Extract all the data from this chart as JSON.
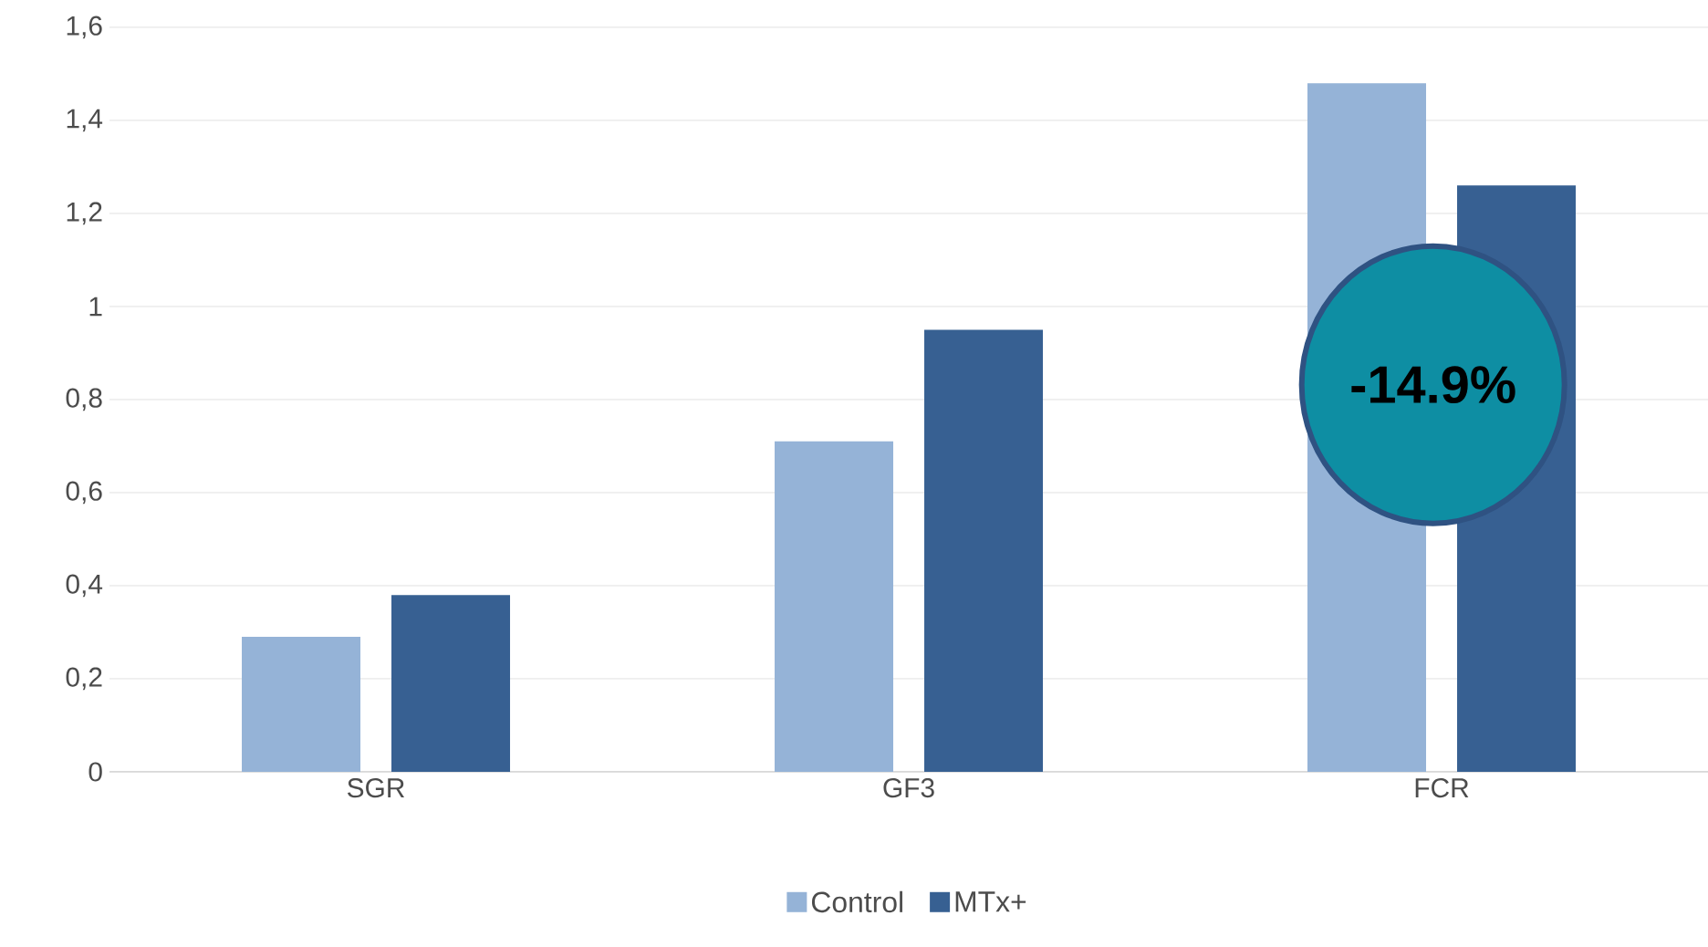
{
  "chart_data": {
    "type": "bar",
    "categories": [
      "SGR",
      "GF3",
      "FCR"
    ],
    "series": [
      {
        "name": "Control",
        "color": "#95b3d7",
        "values": [
          0.29,
          0.71,
          1.48
        ]
      },
      {
        "name": "MTx+",
        "color": "#376092",
        "values": [
          0.38,
          0.95,
          1.26
        ]
      }
    ],
    "ylim": [
      0,
      1.6
    ],
    "yticks": [
      0,
      {
        "value": 0.2,
        "label": "0,2"
      },
      {
        "value": 0.4,
        "label": "0,4"
      },
      {
        "value": 0.6,
        "label": "0,6"
      },
      {
        "value": 0.8,
        "label": "0,8"
      },
      1,
      {
        "value": 1.2,
        "label": "1,2"
      },
      {
        "value": 1.4,
        "label": "1,4"
      },
      {
        "value": 1.6,
        "label": "1,6"
      }
    ],
    "grid": "y",
    "legend": "bottom",
    "annotations": [
      "-14.9%"
    ]
  }
}
